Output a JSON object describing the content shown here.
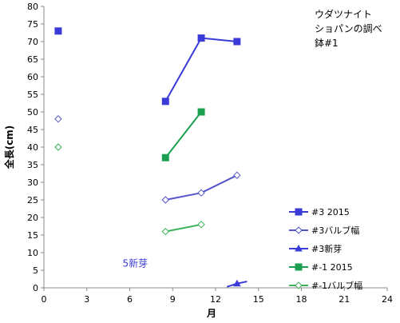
{
  "chart_data": {
    "type": "scatter",
    "title_lines": [
      "ウダツナイト",
      "ショパンの調べ",
      "鉢#1"
    ],
    "xlabel": "月",
    "ylabel": "全長(cm)",
    "xlim": [
      0,
      24
    ],
    "ylim": [
      0,
      80
    ],
    "xticks": [
      0,
      3,
      6,
      9,
      12,
      15,
      18,
      21,
      24
    ],
    "yticks": [
      0,
      5,
      10,
      15,
      20,
      25,
      30,
      35,
      40,
      45,
      50,
      55,
      60,
      65,
      70,
      75,
      80
    ],
    "grid": false,
    "legend_position": "right",
    "annotation": {
      "text": "5新芽",
      "x": 5.5,
      "y": 6,
      "color": "#3a3ad0"
    },
    "series": [
      {
        "name": "#3 2015",
        "color": "#3a3ad8",
        "marker": "square",
        "points": [
          [
            1,
            73
          ]
        ],
        "lines": [
          [
            [
              8.5,
              53
            ],
            [
              11,
              71
            ],
            [
              13.5,
              70
            ]
          ]
        ]
      },
      {
        "name": "#3バルブ幅",
        "color": "#5555cc",
        "marker": "diamond-open",
        "points": [
          [
            1,
            48
          ]
        ],
        "lines": [
          [
            [
              8.5,
              25
            ],
            [
              11,
              27
            ],
            [
              13.5,
              32
            ]
          ]
        ]
      },
      {
        "name": "#3新芽",
        "color": "#3a3ad8",
        "marker": "triangle",
        "points": [],
        "lines": [
          [
            [
              12.8,
              0.3
            ],
            [
              13.5,
              1.2
            ],
            [
              14.2,
              1.8
            ]
          ]
        ],
        "marker_points": [
          [
            13.5,
            1.2
          ]
        ]
      },
      {
        "name": "#-1 2015",
        "color": "#1aa050",
        "marker": "square",
        "points": [],
        "lines": [
          [
            [
              8.5,
              37
            ],
            [
              11,
              50
            ]
          ]
        ]
      },
      {
        "name": "#-1バルブ幅",
        "color": "#3cb35a",
        "marker": "diamond-open",
        "points": [
          [
            1,
            40
          ]
        ],
        "lines": [
          [
            [
              8.5,
              16
            ],
            [
              11,
              18
            ]
          ]
        ]
      }
    ]
  }
}
